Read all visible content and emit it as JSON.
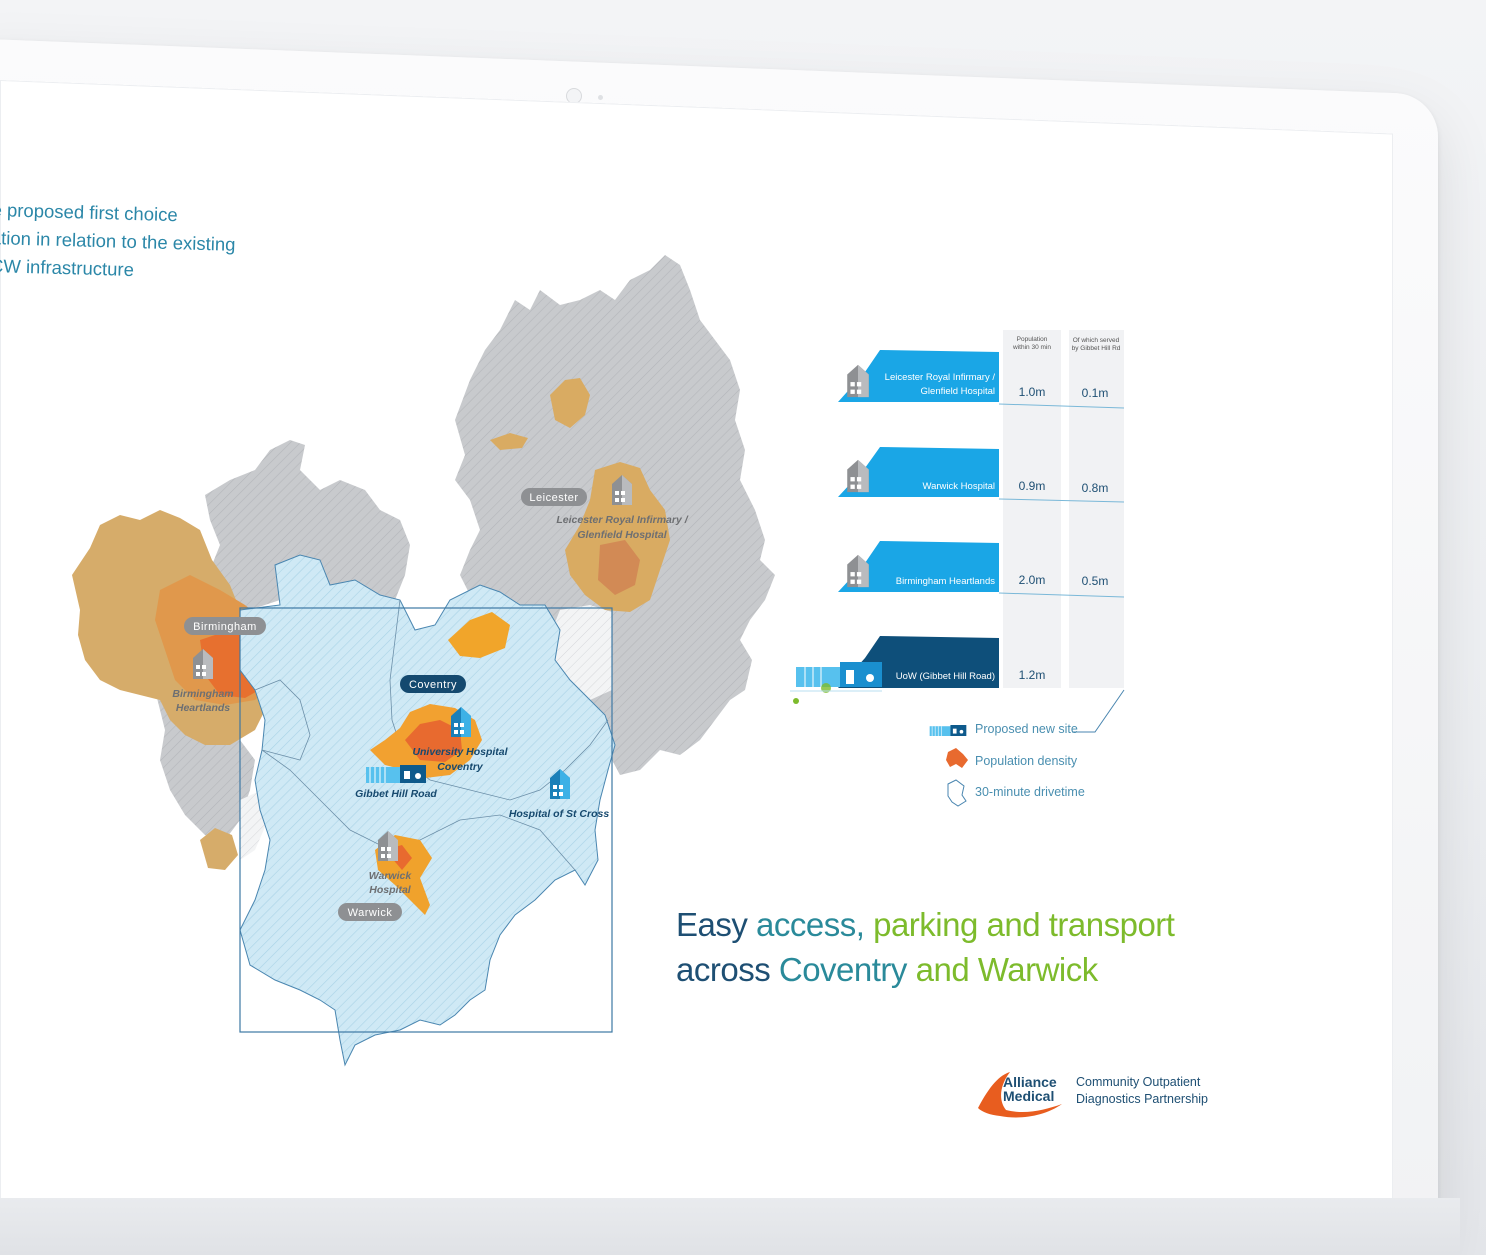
{
  "intro": {
    "line1": "e proposed first choice",
    "line2": "ation in relation to the existing",
    "line3": "CW infrastructure"
  },
  "map": {
    "places": {
      "leicester": "Leicester",
      "birmingham": "Birmingham",
      "coventry": "Coventry",
      "warwick": "Warwick"
    },
    "sites": {
      "leicester_royal_l1": "Leicester Royal Infirmary /",
      "leicester_royal_l2": "Glenfield Hospital",
      "birmingham_l1": "Birmingham",
      "birmingham_l2": "Heartlands",
      "uhc_l1": "University Hospital",
      "uhc_l2": "Coventry",
      "gibbet": "Gibbet Hill Road",
      "st_cross": "Hospital of St Cross",
      "warwick_l1": "Warwick",
      "warwick_l2": "Hospital"
    }
  },
  "table": {
    "col1_l1": "Population",
    "col1_l2": "within 30 min",
    "col2_l1": "Of which served",
    "col2_l2": "by Gibbet Hill Rd",
    "rows": [
      {
        "name_l1": "Leicester Royal Infirmary /",
        "name_l2": "Glenfield Hospital",
        "population": "1.0m",
        "served": "0.1m"
      },
      {
        "name_l1": "Warwick Hospital",
        "name_l2": "",
        "population": "0.9m",
        "served": "0.8m"
      },
      {
        "name_l1": "Birmingham Heartlands",
        "name_l2": "",
        "population": "2.0m",
        "served": "0.5m"
      },
      {
        "name_l1": "UoW (Gibbet Hill Road)",
        "name_l2": "",
        "population": "1.2m",
        "served": ""
      }
    ]
  },
  "legend": {
    "proposed": "Proposed new site",
    "density": "Population density",
    "drivetime": "30-minute drivetime"
  },
  "headline": {
    "w1": "Easy",
    "w2": "access,",
    "w3": "parking and transport",
    "w4": "across",
    "w5": "Coventry",
    "w6": "and Warwick"
  },
  "logo": {
    "brand_l1": "Alliance",
    "brand_l2": "Medical",
    "partner_l1": "Community Outpatient",
    "partner_l2": "Diagnostics Partnership"
  },
  "colors": {
    "grey_region": "#c7c9cc",
    "blue_region": "#cdeaf6",
    "tan_density": "#d8ad6c",
    "orange_density": "#f0a22a",
    "red_density": "#e9662e",
    "bar_light": "#1aa6e6",
    "bar_dark": "#0e4f7a",
    "accent_green": "#7dbb2c"
  }
}
